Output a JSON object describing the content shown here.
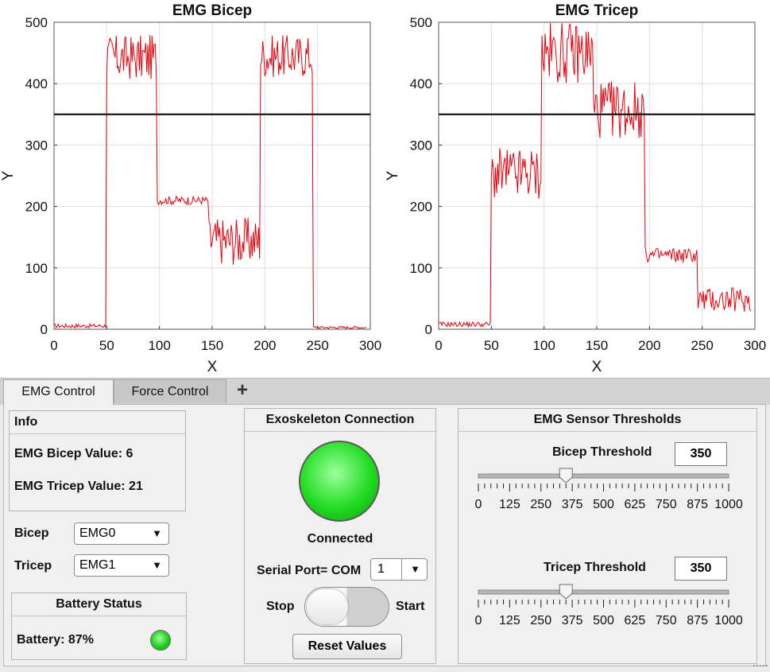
{
  "charts": {
    "bicep": {
      "title": "EMG Bicep",
      "xlabel": "X",
      "ylabel": "Y",
      "xticks": [
        "0",
        "50",
        "100",
        "150",
        "200",
        "250",
        "300"
      ],
      "yticks": [
        "0",
        "100",
        "200",
        "300",
        "400",
        "500"
      ]
    },
    "tricep": {
      "title": "EMG Tricep",
      "xlabel": "X",
      "ylabel": "Y",
      "xticks": [
        "0",
        "50",
        "100",
        "150",
        "200",
        "250",
        "300"
      ],
      "yticks": [
        "0",
        "100",
        "200",
        "300",
        "400",
        "500"
      ]
    }
  },
  "chart_data": [
    {
      "type": "line",
      "title": "EMG Bicep",
      "xlabel": "X",
      "ylabel": "Y",
      "xlim": [
        0,
        300
      ],
      "ylim": [
        0,
        500
      ],
      "grid": true,
      "threshold": 350,
      "line_color": "#e8000b",
      "threshold_color": "#000000",
      "segments": [
        {
          "x_start": 0,
          "x_end": 49,
          "min": 2,
          "max": 9
        },
        {
          "x_start": 50,
          "x_end": 97,
          "min": 405,
          "max": 480
        },
        {
          "x_start": 98,
          "x_end": 146,
          "min": 203,
          "max": 217
        },
        {
          "x_start": 147,
          "x_end": 195,
          "min": 105,
          "max": 183
        },
        {
          "x_start": 196,
          "x_end": 245,
          "min": 410,
          "max": 480
        },
        {
          "x_start": 246,
          "x_end": 296,
          "min": 1,
          "max": 5
        }
      ]
    },
    {
      "type": "line",
      "title": "EMG Tricep",
      "xlabel": "X",
      "ylabel": "Y",
      "xlim": [
        0,
        300
      ],
      "ylim": [
        0,
        500
      ],
      "grid": true,
      "threshold": 350,
      "line_color": "#e8000b",
      "threshold_color": "#000000",
      "segments": [
        {
          "x_start": 0,
          "x_end": 49,
          "min": 4,
          "max": 12
        },
        {
          "x_start": 50,
          "x_end": 97,
          "min": 210,
          "max": 295
        },
        {
          "x_start": 98,
          "x_end": 146,
          "min": 400,
          "max": 500
        },
        {
          "x_start": 147,
          "x_end": 195,
          "min": 310,
          "max": 405
        },
        {
          "x_start": 196,
          "x_end": 245,
          "min": 108,
          "max": 133
        },
        {
          "x_start": 246,
          "x_end": 296,
          "min": 28,
          "max": 68
        }
      ]
    }
  ],
  "tabs": [
    {
      "label": "EMG Control",
      "active": true
    },
    {
      "label": "Force Control",
      "active": false
    }
  ],
  "tab_add_label": "+",
  "info": {
    "title": "Info",
    "bicep_value": "EMG Bicep Value: 6",
    "tricep_value": "EMG Tricep Value: 21"
  },
  "channels": {
    "bicep_label": "Bicep",
    "bicep_value": "EMG0",
    "tricep_label": "Tricep",
    "tricep_value": "EMG1"
  },
  "battery": {
    "title": "Battery Status",
    "label": "Battery: 87%",
    "percent": 87,
    "lamp_color": "#22cc22"
  },
  "connection": {
    "title": "Exoskeleton Connection",
    "status": "Connected",
    "lamp_color": "#22dd22",
    "serial_label": "Serial Port= COM",
    "serial_value": "1",
    "stop_label": "Stop",
    "start_label": "Start",
    "switch_state": "stop",
    "reset_label": "Reset Values"
  },
  "thresholds": {
    "title": "EMG Sensor Thresholds",
    "bicep_label": "Bicep Threshold",
    "bicep_value": "350",
    "bicep_slider_value": 350,
    "tricep_label": "Tricep Threshold",
    "tricep_value": "350",
    "tricep_slider_value": 350,
    "slider_min": 0,
    "slider_max": 1000,
    "slider_ticks": [
      "0",
      "125",
      "250",
      "375",
      "500",
      "625",
      "750",
      "875",
      "1000"
    ]
  }
}
